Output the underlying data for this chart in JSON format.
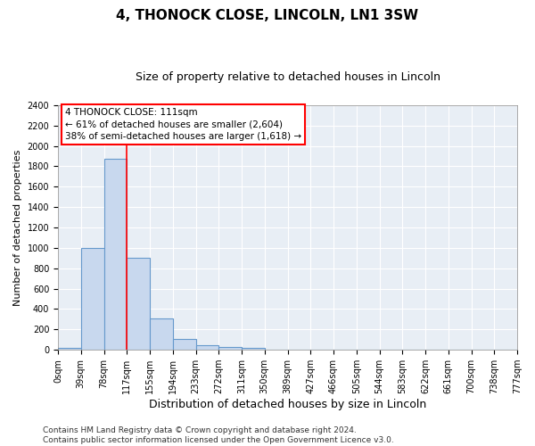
{
  "title": "4, THONOCK CLOSE, LINCOLN, LN1 3SW",
  "subtitle": "Size of property relative to detached houses in Lincoln",
  "xlabel": "Distribution of detached houses by size in Lincoln",
  "ylabel": "Number of detached properties",
  "bar_values": [
    20,
    1000,
    1870,
    900,
    310,
    105,
    45,
    30,
    20,
    0,
    0,
    0,
    0,
    0,
    0,
    0,
    0,
    0,
    0,
    0
  ],
  "categories": [
    "0sqm",
    "39sqm",
    "78sqm",
    "117sqm",
    "155sqm",
    "194sqm",
    "233sqm",
    "272sqm",
    "311sqm",
    "350sqm",
    "389sqm",
    "427sqm",
    "466sqm",
    "505sqm",
    "544sqm",
    "583sqm",
    "622sqm",
    "661sqm",
    "700sqm",
    "738sqm",
    "777sqm"
  ],
  "bar_color": "#c8d8ee",
  "bar_edge_color": "#6699cc",
  "red_line_x": 2,
  "annotation_text": "4 THONOCK CLOSE: 111sqm\n← 61% of detached houses are smaller (2,604)\n38% of semi-detached houses are larger (1,618) →",
  "annotation_box_color": "white",
  "annotation_box_edge_color": "red",
  "ylim": [
    0,
    2400
  ],
  "yticks": [
    0,
    200,
    400,
    600,
    800,
    1000,
    1200,
    1400,
    1600,
    1800,
    2000,
    2200,
    2400
  ],
  "plot_bg_color": "#e8eef5",
  "grid_color": "#ffffff",
  "footnote": "Contains HM Land Registry data © Crown copyright and database right 2024.\nContains public sector information licensed under the Open Government Licence v3.0.",
  "title_fontsize": 11,
  "subtitle_fontsize": 9,
  "xlabel_fontsize": 9,
  "ylabel_fontsize": 8,
  "annotation_fontsize": 7.5,
  "footnote_fontsize": 6.5,
  "tick_fontsize": 7
}
